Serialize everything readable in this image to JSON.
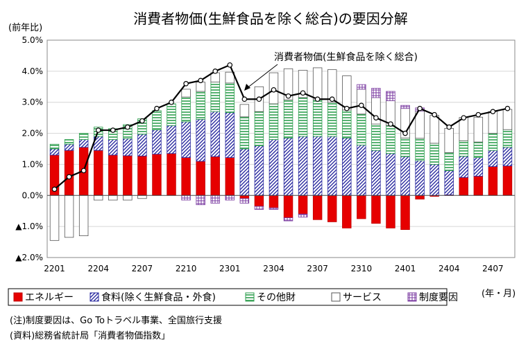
{
  "chart_data": {
    "type": "bar",
    "stacked": true,
    "title": "消費者物価(生鮮食品を除く総合)の要因分解",
    "ylabel": "(前年比)",
    "xlabel": "(年・月)",
    "ylim": [
      -2.0,
      5.0
    ],
    "yticks": [
      {
        "value": 5.0,
        "label": "5.0%"
      },
      {
        "value": 4.0,
        "label": "4.0%"
      },
      {
        "value": 3.0,
        "label": "3.0%"
      },
      {
        "value": 2.0,
        "label": "2.0%"
      },
      {
        "value": 1.0,
        "label": "1.0%"
      },
      {
        "value": 0.0,
        "label": "0.0%"
      },
      {
        "value": -1.0,
        "label": "▲1.0%"
      },
      {
        "value": -2.0,
        "label": "▲2.0%"
      }
    ],
    "x": [
      "2201",
      "2202",
      "2203",
      "2204",
      "2205",
      "2206",
      "2207",
      "2208",
      "2209",
      "2210",
      "2211",
      "2212",
      "2301",
      "2302",
      "2303",
      "2304",
      "2305",
      "2306",
      "2307",
      "2308",
      "2309",
      "2310",
      "2311",
      "2312",
      "2401",
      "2402",
      "2403",
      "2404",
      "2405",
      "2406",
      "2407",
      "2408"
    ],
    "xtick_labels": [
      "2201",
      "2204",
      "2207",
      "2210",
      "2301",
      "2304",
      "2307",
      "2310",
      "2401",
      "2404",
      "2407"
    ],
    "xtick_indices": [
      0,
      3,
      6,
      9,
      12,
      15,
      18,
      21,
      24,
      27,
      30
    ],
    "grid": true,
    "legend_position": "bottom",
    "series": [
      {
        "name": "エネルギー",
        "key": "energy",
        "color": "#e60000",
        "values": [
          1.3,
          1.45,
          1.55,
          1.45,
          1.3,
          1.28,
          1.27,
          1.33,
          1.35,
          1.22,
          1.1,
          1.25,
          1.22,
          -0.1,
          -0.35,
          -0.4,
          -0.72,
          -0.6,
          -0.78,
          -0.85,
          -1.05,
          -0.75,
          -0.9,
          -1.05,
          -1.1,
          -0.12,
          -0.03,
          0.02,
          0.58,
          0.62,
          0.93,
          0.95
        ]
      },
      {
        "name": "食料(除く生鮮食品・外食)",
        "key": "food",
        "color": "#3333aa",
        "values": [
          0.2,
          0.2,
          0.25,
          0.45,
          0.5,
          0.55,
          0.7,
          0.78,
          0.9,
          1.15,
          1.35,
          1.45,
          1.45,
          1.5,
          1.6,
          1.8,
          1.85,
          1.9,
          1.9,
          1.9,
          1.85,
          1.62,
          1.45,
          1.35,
          1.25,
          1.12,
          1.0,
          0.78,
          0.68,
          0.6,
          0.52,
          0.6
        ]
      },
      {
        "name": "その他財",
        "key": "other",
        "color": "#33aa55",
        "values": [
          0.15,
          0.15,
          0.2,
          0.3,
          0.35,
          0.45,
          0.5,
          0.62,
          0.7,
          0.8,
          0.9,
          0.95,
          0.95,
          1.03,
          1.1,
          1.15,
          1.23,
          1.25,
          1.18,
          1.1,
          0.9,
          1.0,
          0.85,
          0.9,
          0.6,
          0.72,
          0.68,
          0.58,
          0.5,
          0.5,
          0.55,
          0.57
        ]
      },
      {
        "name": "サービス",
        "key": "service",
        "color": "#ffffff",
        "values": [
          -1.45,
          -1.35,
          -1.3,
          -0.15,
          -0.15,
          -0.15,
          -0.1,
          0.0,
          0.0,
          0.25,
          0.3,
          0.3,
          0.35,
          0.4,
          0.8,
          1.0,
          1.0,
          0.88,
          1.03,
          1.05,
          1.1,
          0.8,
          0.85,
          0.8,
          0.95,
          0.88,
          0.9,
          0.78,
          0.75,
          0.8,
          0.7,
          0.65
        ]
      },
      {
        "name": "制度要因",
        "key": "inst",
        "color": "#8844aa",
        "values": [
          0.0,
          0.0,
          0.0,
          0.0,
          0.0,
          0.0,
          0.0,
          0.0,
          0.0,
          -0.15,
          -0.3,
          -0.25,
          -0.15,
          -0.15,
          -0.1,
          -0.05,
          -0.1,
          -0.1,
          0.0,
          0.0,
          0.0,
          0.15,
          0.3,
          0.3,
          0.1,
          0.1,
          0.0,
          0.0,
          0.0,
          0.0,
          0.0,
          0.0
        ]
      }
    ],
    "line": {
      "name": "消費者物価(生鮮食品を除く総合)",
      "values": [
        0.2,
        0.6,
        0.8,
        2.1,
        2.1,
        2.2,
        2.4,
        2.8,
        3.0,
        3.6,
        3.7,
        4.0,
        4.2,
        3.1,
        3.1,
        3.4,
        3.2,
        3.3,
        3.1,
        3.1,
        2.8,
        2.9,
        2.5,
        2.3,
        2.0,
        2.8,
        2.6,
        2.2,
        2.5,
        2.6,
        2.7,
        2.8
      ]
    }
  },
  "notes": {
    "note1": "(注)制度要因は、Go Toトラベル事業、全国旅行支援",
    "note2": "(資料)総務省統計局「消費者物価指数」"
  }
}
